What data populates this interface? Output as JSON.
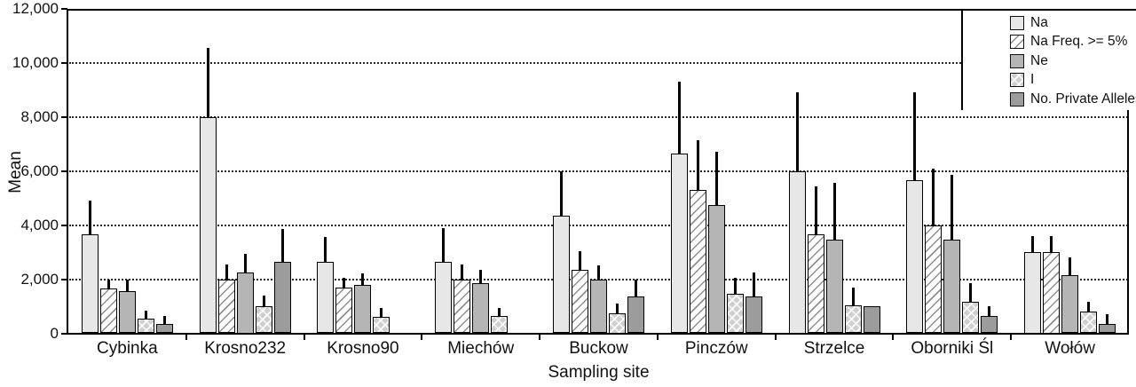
{
  "chart_data": {
    "type": "bar",
    "title": "",
    "xlabel": "Sampling site",
    "ylabel": "Mean",
    "ylim": [
      0,
      12000
    ],
    "yticks": [
      0,
      2000,
      4000,
      6000,
      8000,
      10000,
      12000
    ],
    "ytick_labels": [
      "0",
      "2,000",
      "4,000",
      "6,000",
      "8,000",
      "10,000",
      "12,000"
    ],
    "grid": "horizontal dotted lines at 2,000 intervals",
    "legend_position": "top-right",
    "error_bars": "upper whiskers only, no caps",
    "categories": [
      "Cybinka",
      "Krosno232",
      "Krosno90",
      "Miechów",
      "Buckow",
      "Pinczów",
      "Strzelce",
      "Oborniki Śl",
      "Wołów"
    ],
    "series": [
      {
        "name": "Na",
        "pattern": "light-gray-solid",
        "values": [
          3650,
          8000,
          2650,
          2650,
          4350,
          6650,
          6000,
          5650,
          3000
        ],
        "errors_up": [
          1250,
          2550,
          900,
          1250,
          1650,
          2650,
          2900,
          3250,
          600
        ]
      },
      {
        "name": "Na Freq. >= 5%",
        "pattern": "white-diagonal-hatch",
        "values": [
          1650,
          2000,
          1700,
          2000,
          2350,
          5300,
          3650,
          4000,
          3000
        ],
        "errors_up": [
          350,
          550,
          350,
          550,
          700,
          1850,
          1800,
          2100,
          600
        ]
      },
      {
        "name": "Ne",
        "pattern": "medium-gray-solid",
        "values": [
          1550,
          2250,
          1800,
          1850,
          2000,
          4750,
          3450,
          3450,
          2150
        ],
        "errors_up": [
          450,
          700,
          400,
          500,
          500,
          1950,
          2100,
          2400,
          650
        ]
      },
      {
        "name": "I",
        "pattern": "gray-crosshatch",
        "values": [
          550,
          1000,
          600,
          650,
          750,
          1450,
          1050,
          1150,
          800
        ],
        "errors_up": [
          300,
          400,
          350,
          300,
          350,
          600,
          650,
          700,
          350
        ]
      },
      {
        "name": "No. Private Alleles",
        "pattern": "dark-gray-solid",
        "values": [
          350,
          2650,
          0,
          0,
          1350,
          1350,
          1000,
          650,
          350
        ],
        "errors_up": [
          300,
          1200,
          0,
          0,
          650,
          900,
          0,
          350,
          350
        ]
      }
    ],
    "colors": {
      "na": "#e7e7e7",
      "na_freq": "#ffffff",
      "ne": "#b5b5b5",
      "i": "#cfcfcf",
      "private_alleles": "#9c9c9c",
      "axis": "#000000"
    }
  }
}
